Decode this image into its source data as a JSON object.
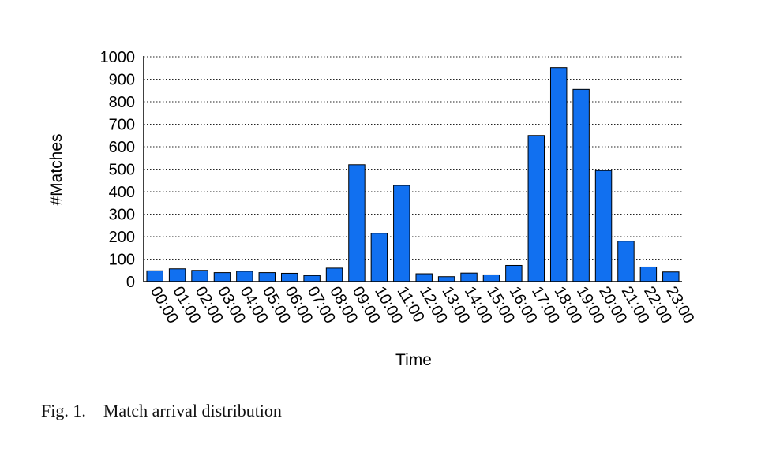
{
  "chart_data": {
    "type": "bar",
    "xlabel": "Time",
    "ylabel": "#Matches",
    "ylim": [
      0,
      1000
    ],
    "yticks": [
      0,
      100,
      200,
      300,
      400,
      500,
      600,
      700,
      800,
      900,
      1000
    ],
    "grid": true,
    "bar_color": "#1170F0",
    "categories": [
      "00:00",
      "01:00",
      "02:00",
      "03:00",
      "04:00",
      "05:00",
      "06:00",
      "07:00",
      "08:00",
      "09:00",
      "10:00",
      "11:00",
      "12:00",
      "13:00",
      "14:00",
      "15:00",
      "16:00",
      "17:00",
      "18:00",
      "19:00",
      "20:00",
      "21:00",
      "22:00",
      "23:00"
    ],
    "values": [
      48,
      57,
      50,
      40,
      46,
      40,
      37,
      27,
      60,
      520,
      215,
      428,
      35,
      22,
      38,
      30,
      72,
      650,
      952,
      855,
      494,
      180,
      65,
      43
    ]
  },
  "caption": {
    "label": "Fig. 1.",
    "text": "Match arrival distribution"
  }
}
